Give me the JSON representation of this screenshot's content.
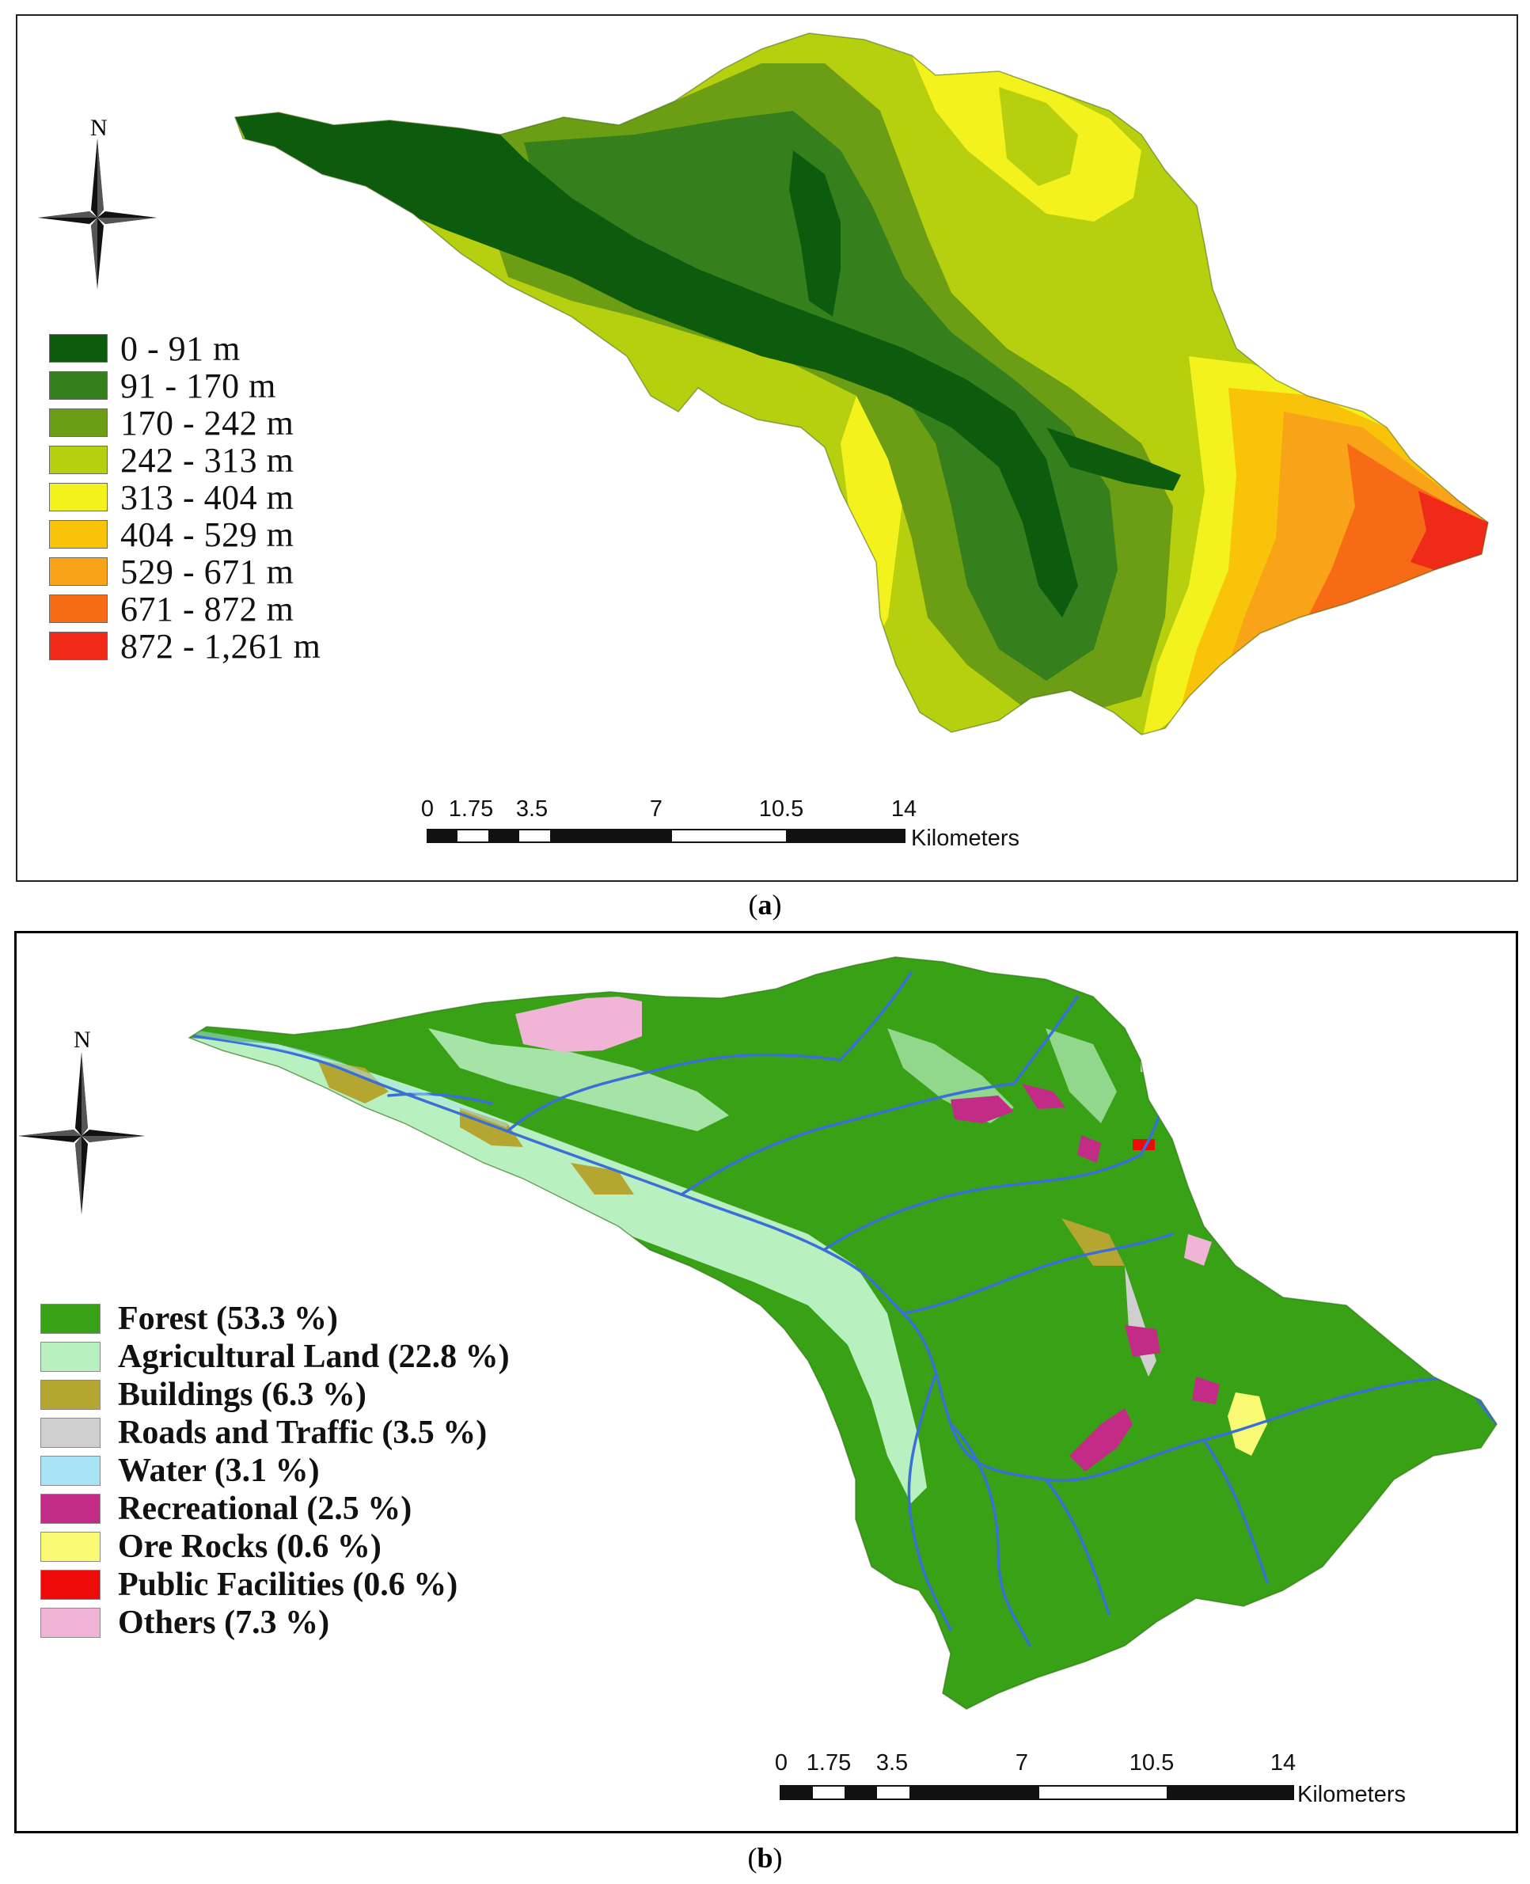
{
  "panel_a": {
    "north_label": "N",
    "legend_title": "",
    "legend": [
      {
        "label": "0 - 91 m",
        "color": "#0d5c0d"
      },
      {
        "label": "91 - 170 m",
        "color": "#357f1c"
      },
      {
        "label": "170 - 242 m",
        "color": "#6b9e14"
      },
      {
        "label": "242 - 313 m",
        "color": "#b6cf0e"
      },
      {
        "label": "313 - 404 m",
        "color": "#f4f21c"
      },
      {
        "label": "404 - 529 m",
        "color": "#f9c30a"
      },
      {
        "label": "529 - 671 m",
        "color": "#f8a318"
      },
      {
        "label": "671 - 872 m",
        "color": "#f76b16"
      },
      {
        "label": "872 - 1,261 m",
        "color": "#ef2a18"
      }
    ],
    "scale": {
      "ticks": [
        "0",
        "1.75",
        "3.5",
        "7",
        "10.5",
        "14"
      ],
      "units": "Kilometers"
    },
    "caption_letter": "a"
  },
  "panel_b": {
    "north_label": "N",
    "legend": [
      {
        "label": "Forest (53.3 %)",
        "color": "#38a116"
      },
      {
        "label": "Agricultural Land (22.8 %)",
        "color": "#b8f0c0"
      },
      {
        "label": "Buildings (6.3 %)",
        "color": "#b5a632"
      },
      {
        "label": "Roads and Traffic (3.5 %)",
        "color": "#cfcfcf"
      },
      {
        "label": "Water (3.1 %)",
        "color": "#a8e4f6"
      },
      {
        "label": "Recreational (2.5 %)",
        "color": "#c22b86"
      },
      {
        "label": "Ore Rocks (0.6 %)",
        "color": "#fafa74"
      },
      {
        "label": "Public Facilities (0.6 %)",
        "color": "#ef0a0a"
      },
      {
        "label": "Others (7.3 %)",
        "color": "#f0b4d6"
      }
    ],
    "scale": {
      "ticks": [
        "0",
        "1.75",
        "3.5",
        "7",
        "10.5",
        "14"
      ],
      "units": "Kilometers"
    },
    "caption_letter": "b"
  },
  "colors": {
    "river": "#3a6fd8",
    "frame": "#222222"
  }
}
